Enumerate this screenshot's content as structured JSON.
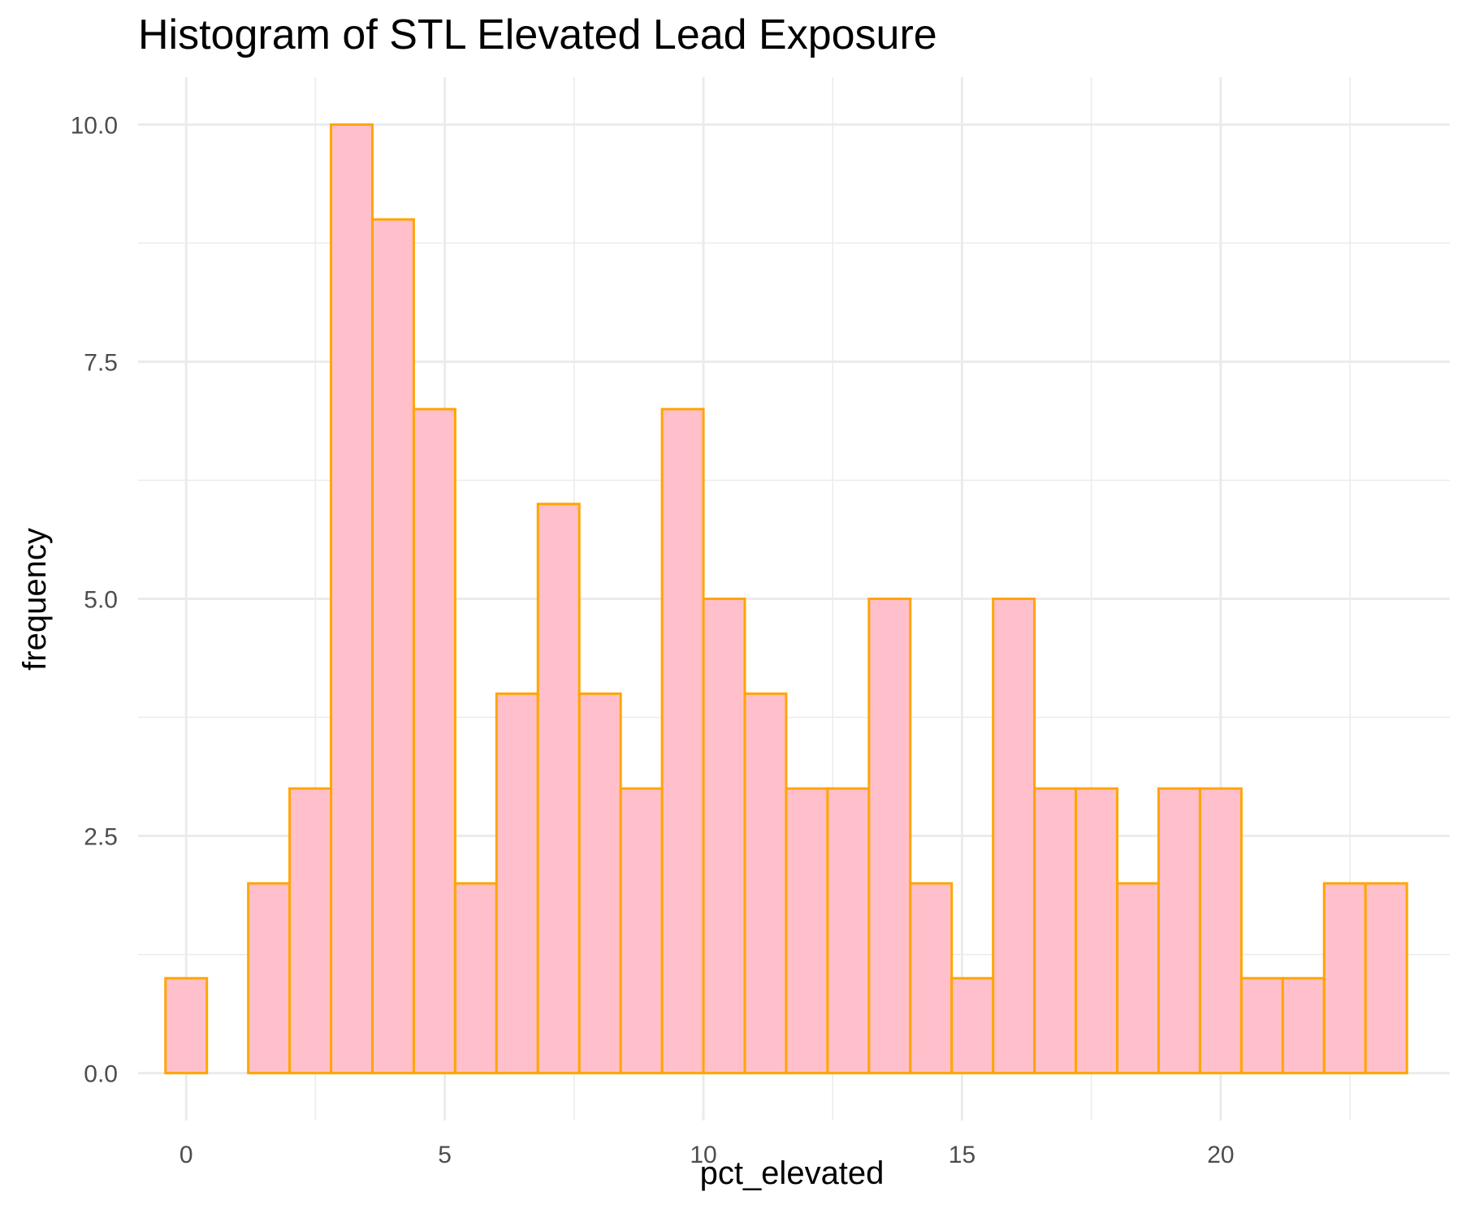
{
  "chart_data": {
    "type": "bar",
    "title": "Histogram of STL Elevated Lead Exposure",
    "xlabel": "pct_elevated",
    "ylabel": "frequency",
    "xlim": [
      -0.93,
      24.43
    ],
    "ylim": [
      -0.5,
      10.5
    ],
    "x_ticks": [
      0,
      5,
      10,
      15,
      20
    ],
    "x_tick_labels": [
      "0",
      "5",
      "10",
      "15",
      "20"
    ],
    "y_ticks": [
      0,
      2.5,
      5,
      7.5,
      10
    ],
    "y_tick_labels": [
      "0.0",
      "2.5",
      "5.0",
      "7.5",
      "10.0"
    ],
    "bin_width": 0.8,
    "bin_centers": [
      0,
      0.8,
      1.6,
      2.4,
      3.2,
      4.0,
      4.8,
      5.6,
      6.4,
      7.2,
      8.0,
      8.8,
      9.6,
      10.4,
      11.2,
      12.0,
      12.8,
      13.6,
      14.4,
      15.2,
      16.0,
      16.8,
      17.6,
      18.4,
      19.2,
      20.0,
      20.8,
      21.6,
      22.4,
      23.2
    ],
    "values": [
      1,
      0,
      2,
      3,
      10,
      9,
      7,
      2,
      4,
      6,
      4,
      3,
      7,
      5,
      4,
      3,
      3,
      5,
      2,
      1,
      5,
      3,
      3,
      2,
      3,
      3,
      1,
      1,
      2,
      2
    ],
    "fill_color": "#FFC0CB",
    "outline_color": "#FFA500",
    "grid": true,
    "legend": "none"
  }
}
